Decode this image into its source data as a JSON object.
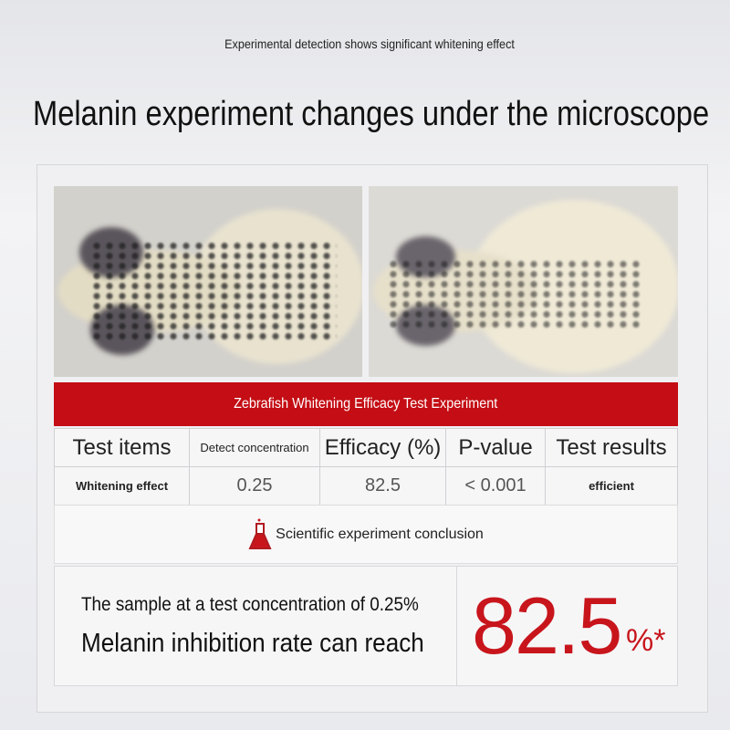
{
  "subtitle": "Experimental detection shows significant whitening effect",
  "title": "Melanin experiment changes under the microscope",
  "banner": "Zebrafish Whitening Efficacy Test Experiment",
  "table": {
    "headers": [
      "Test items",
      "Detect concentration",
      "Efficacy (%)",
      "P-value",
      "Test results"
    ],
    "row": [
      "Whitening effect",
      "0.25",
      "82.5",
      "< 0.001",
      "efficient"
    ]
  },
  "conclusion": {
    "icon": "flask-icon",
    "label": "Scientific experiment conclusion"
  },
  "result": {
    "line1": "The sample at a test concentration of 0.25%",
    "line2": "Melanin inhibition rate can reach",
    "value": "82.5",
    "unit": "%*"
  },
  "colors": {
    "accent": "#c40d14"
  }
}
